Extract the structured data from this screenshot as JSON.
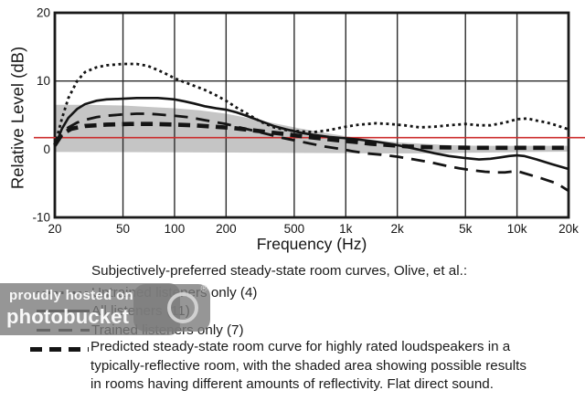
{
  "chart_data": {
    "type": "line",
    "x_scale": "log",
    "xlabel": "Frequency (Hz)",
    "ylabel": "Relative Level (dB)",
    "xlim": [
      20,
      20000
    ],
    "ylim": [
      -10,
      20
    ],
    "x_tick_values": [
      20,
      50,
      100,
      200,
      500,
      1000,
      2000,
      5000,
      10000,
      20000
    ],
    "x_tick_labels": [
      "20",
      "50",
      "100",
      "200",
      "500",
      "1k",
      "2k",
      "5k",
      "10k",
      "20k"
    ],
    "y_tick_values": [
      20,
      10,
      0,
      -10
    ],
    "y_tick_labels": [
      "20",
      "10",
      "0",
      "-10"
    ],
    "x_gridlines": [
      50,
      100,
      200,
      500,
      1000,
      2000,
      5000,
      10000
    ],
    "y_gridlines": [
      10,
      0
    ],
    "grid": true,
    "legend_position": "below",
    "reference_line": {
      "value": 1.7,
      "color": "#cc2b2b"
    },
    "shaded_band": {
      "color": "#c5c5c5",
      "meaning": "possible results in rooms having different amounts of reflectivity",
      "top": [
        [
          20,
          6.5
        ],
        [
          30,
          6.5
        ],
        [
          50,
          6.4
        ],
        [
          70,
          6.2
        ],
        [
          100,
          6.0
        ],
        [
          140,
          5.7
        ],
        [
          200,
          5.2
        ],
        [
          280,
          4.5
        ],
        [
          400,
          3.7
        ],
        [
          550,
          3.0
        ],
        [
          750,
          2.4
        ],
        [
          1000,
          1.9
        ],
        [
          1400,
          1.4
        ],
        [
          2000,
          1.0
        ],
        [
          2800,
          0.8
        ],
        [
          4000,
          0.6
        ],
        [
          6000,
          0.5
        ],
        [
          10000,
          0.5
        ],
        [
          20000,
          0.5
        ]
      ],
      "bottom": [
        [
          20,
          -0.4
        ],
        [
          100,
          -0.45
        ],
        [
          300,
          -0.5
        ],
        [
          700,
          -0.55
        ],
        [
          1500,
          -0.6
        ],
        [
          3000,
          -0.6
        ],
        [
          6000,
          -0.5
        ],
        [
          12000,
          -0.4
        ],
        [
          20000,
          -0.35
        ]
      ]
    },
    "series": [
      {
        "name": "Untrained listeners only (4)",
        "style": "dotted",
        "points": [
          [
            20,
            0.6
          ],
          [
            22,
            4.5
          ],
          [
            24,
            7.5
          ],
          [
            27,
            10.0
          ],
          [
            30,
            11.3
          ],
          [
            35,
            12.0
          ],
          [
            40,
            12.3
          ],
          [
            50,
            12.5
          ],
          [
            60,
            12.5
          ],
          [
            70,
            12.2
          ],
          [
            80,
            11.6
          ],
          [
            90,
            11.0
          ],
          [
            100,
            10.4
          ],
          [
            115,
            9.8
          ],
          [
            130,
            9.3
          ],
          [
            150,
            8.7
          ],
          [
            175,
            7.9
          ],
          [
            200,
            7.1
          ],
          [
            230,
            6.1
          ],
          [
            270,
            5.1
          ],
          [
            320,
            4.0
          ],
          [
            380,
            3.2
          ],
          [
            450,
            2.8
          ],
          [
            550,
            2.6
          ],
          [
            650,
            2.5
          ],
          [
            800,
            2.8
          ],
          [
            1000,
            3.3
          ],
          [
            1200,
            3.6
          ],
          [
            1500,
            3.8
          ],
          [
            1800,
            3.7
          ],
          [
            2200,
            3.5
          ],
          [
            2700,
            3.2
          ],
          [
            3300,
            3.3
          ],
          [
            4000,
            3.5
          ],
          [
            5000,
            3.7
          ],
          [
            6000,
            3.5
          ],
          [
            7000,
            3.5
          ],
          [
            8500,
            3.9
          ],
          [
            10000,
            4.4
          ],
          [
            11500,
            4.5
          ],
          [
            13000,
            4.2
          ],
          [
            15000,
            3.9
          ],
          [
            17000,
            3.5
          ],
          [
            20000,
            2.9
          ]
        ]
      },
      {
        "name": "All listeners (11)",
        "style": "solid",
        "points": [
          [
            20,
            0.4
          ],
          [
            22,
            3.0
          ],
          [
            24,
            4.6
          ],
          [
            27,
            5.9
          ],
          [
            30,
            6.6
          ],
          [
            35,
            7.1
          ],
          [
            40,
            7.3
          ],
          [
            50,
            7.4
          ],
          [
            60,
            7.5
          ],
          [
            70,
            7.5
          ],
          [
            80,
            7.5
          ],
          [
            90,
            7.4
          ],
          [
            100,
            7.3
          ],
          [
            115,
            7.0
          ],
          [
            130,
            6.7
          ],
          [
            150,
            6.3
          ],
          [
            175,
            6.0
          ],
          [
            200,
            5.8
          ],
          [
            230,
            5.4
          ],
          [
            270,
            4.8
          ],
          [
            320,
            4.1
          ],
          [
            380,
            3.4
          ],
          [
            450,
            2.9
          ],
          [
            550,
            2.4
          ],
          [
            650,
            2.1
          ],
          [
            800,
            1.8
          ],
          [
            1000,
            1.6
          ],
          [
            1200,
            1.4
          ],
          [
            1500,
            1.1
          ],
          [
            1800,
            0.8
          ],
          [
            2200,
            0.4
          ],
          [
            2700,
            -0.1
          ],
          [
            3300,
            -0.6
          ],
          [
            4000,
            -1.0
          ],
          [
            5000,
            -1.3
          ],
          [
            6000,
            -1.5
          ],
          [
            7000,
            -1.4
          ],
          [
            8000,
            -1.2
          ],
          [
            9000,
            -1.0
          ],
          [
            10000,
            -0.9
          ],
          [
            11000,
            -1.0
          ],
          [
            13000,
            -1.5
          ],
          [
            16000,
            -2.2
          ],
          [
            20000,
            -2.9
          ]
        ]
      },
      {
        "name": "Trained listeners only (7)",
        "style": "long-dash",
        "points": [
          [
            20,
            0.4
          ],
          [
            22,
            2.2
          ],
          [
            24,
            3.2
          ],
          [
            27,
            3.9
          ],
          [
            30,
            4.3
          ],
          [
            35,
            4.7
          ],
          [
            40,
            4.9
          ],
          [
            50,
            5.1
          ],
          [
            60,
            5.2
          ],
          [
            70,
            5.2
          ],
          [
            80,
            5.1
          ],
          [
            100,
            4.9
          ],
          [
            120,
            4.7
          ],
          [
            140,
            4.4
          ],
          [
            170,
            4.0
          ],
          [
            200,
            3.7
          ],
          [
            240,
            3.2
          ],
          [
            290,
            2.7
          ],
          [
            350,
            2.2
          ],
          [
            420,
            1.7
          ],
          [
            500,
            1.3
          ],
          [
            600,
            0.9
          ],
          [
            750,
            0.4
          ],
          [
            900,
            0.1
          ],
          [
            1100,
            -0.3
          ],
          [
            1300,
            -0.6
          ],
          [
            1600,
            -0.8
          ],
          [
            2000,
            -1.1
          ],
          [
            2500,
            -1.5
          ],
          [
            3100,
            -1.9
          ],
          [
            3800,
            -2.4
          ],
          [
            4600,
            -2.8
          ],
          [
            5500,
            -3.1
          ],
          [
            6500,
            -3.3
          ],
          [
            7500,
            -3.4
          ],
          [
            8500,
            -3.4
          ],
          [
            10000,
            -3.2
          ],
          [
            12000,
            -3.8
          ],
          [
            14000,
            -4.3
          ],
          [
            17000,
            -5.0
          ],
          [
            20000,
            -6.1
          ]
        ]
      },
      {
        "name": "Predicted steady-state room curve (highly rated loudspeakers, typically-reflective room)",
        "style": "thick-dash",
        "points": [
          [
            20,
            0.6
          ],
          [
            22,
            2.2
          ],
          [
            25,
            3.0
          ],
          [
            30,
            3.4
          ],
          [
            40,
            3.6
          ],
          [
            55,
            3.7
          ],
          [
            75,
            3.7
          ],
          [
            100,
            3.6
          ],
          [
            130,
            3.5
          ],
          [
            170,
            3.3
          ],
          [
            220,
            3.1
          ],
          [
            280,
            2.8
          ],
          [
            350,
            2.5
          ],
          [
            450,
            2.2
          ],
          [
            550,
            1.9
          ],
          [
            700,
            1.6
          ],
          [
            900,
            1.3
          ],
          [
            1100,
            1.1
          ],
          [
            1400,
            0.8
          ],
          [
            1800,
            0.6
          ],
          [
            2300,
            0.4
          ],
          [
            3000,
            0.3
          ],
          [
            4000,
            0.25
          ],
          [
            5500,
            0.2
          ],
          [
            7500,
            0.2
          ],
          [
            10000,
            0.2
          ],
          [
            14000,
            0.2
          ],
          [
            20000,
            0.2
          ]
        ]
      }
    ]
  },
  "legend": {
    "title": "Subjectively-preferred steady-state room curves, Olive, et al.:",
    "items": [
      {
        "label": "Untrained listeners only (4)",
        "style": "dotted"
      },
      {
        "label": "All listeners (11)",
        "style": "solid"
      },
      {
        "label": "Trained listeners only (7)",
        "style": "long-dash"
      },
      {
        "style": "thick-dash",
        "label_lines": [
          "Predicted steady-state room curve for highly rated loudspeakers in a",
          "typically-reflective room, with the shaded area showing possible results",
          "in rooms having different amounts of reflectivity.  Flat direct sound."
        ]
      }
    ]
  },
  "watermark": {
    "line1": "proudly hosted on",
    "line2": "photobucket",
    "registered_mark": "®"
  },
  "colors": {
    "curve": "#141414",
    "reference_line": "#cc2b2b",
    "shaded_band": "#c5c5c5",
    "watermark_gray": "#7c7c7c"
  }
}
